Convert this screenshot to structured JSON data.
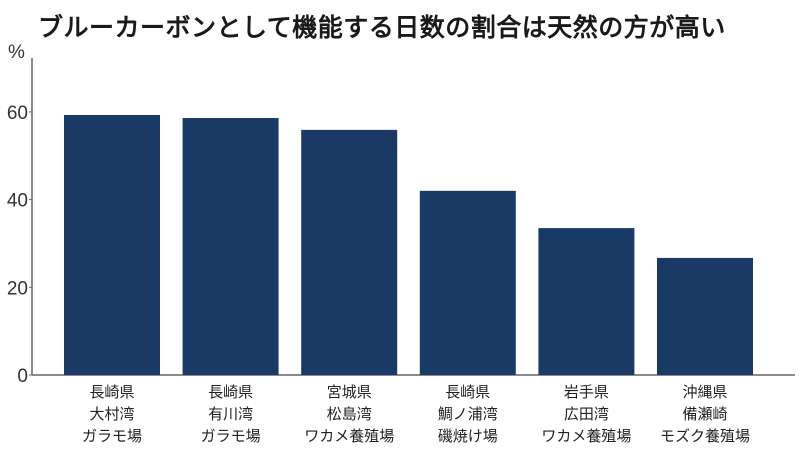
{
  "chart_data": {
    "type": "bar",
    "title": "ブルーカーボンとして機能する日数の割合は天然の方が高い",
    "ylabel": "%",
    "xlabel": "",
    "ylim": [
      0,
      70
    ],
    "yticks": [
      0,
      20,
      40,
      60
    ],
    "grid": false,
    "bar_color": "#1a3a66",
    "categories": [
      [
        "長崎県",
        "大村湾",
        "ガラモ場"
      ],
      [
        "長崎県",
        "有川湾",
        "ガラモ場"
      ],
      [
        "宮城県",
        "松島湾",
        "ワカメ養殖場"
      ],
      [
        "長崎県",
        "鯛ノ浦湾",
        "磯焼け場"
      ],
      [
        "岩手県",
        "広田湾",
        "ワカメ養殖場"
      ],
      [
        "沖縄県",
        "備瀬崎",
        "モズク養殖場"
      ]
    ],
    "values": [
      59.3,
      58.6,
      55.9,
      42.0,
      33.5,
      26.7
    ]
  }
}
